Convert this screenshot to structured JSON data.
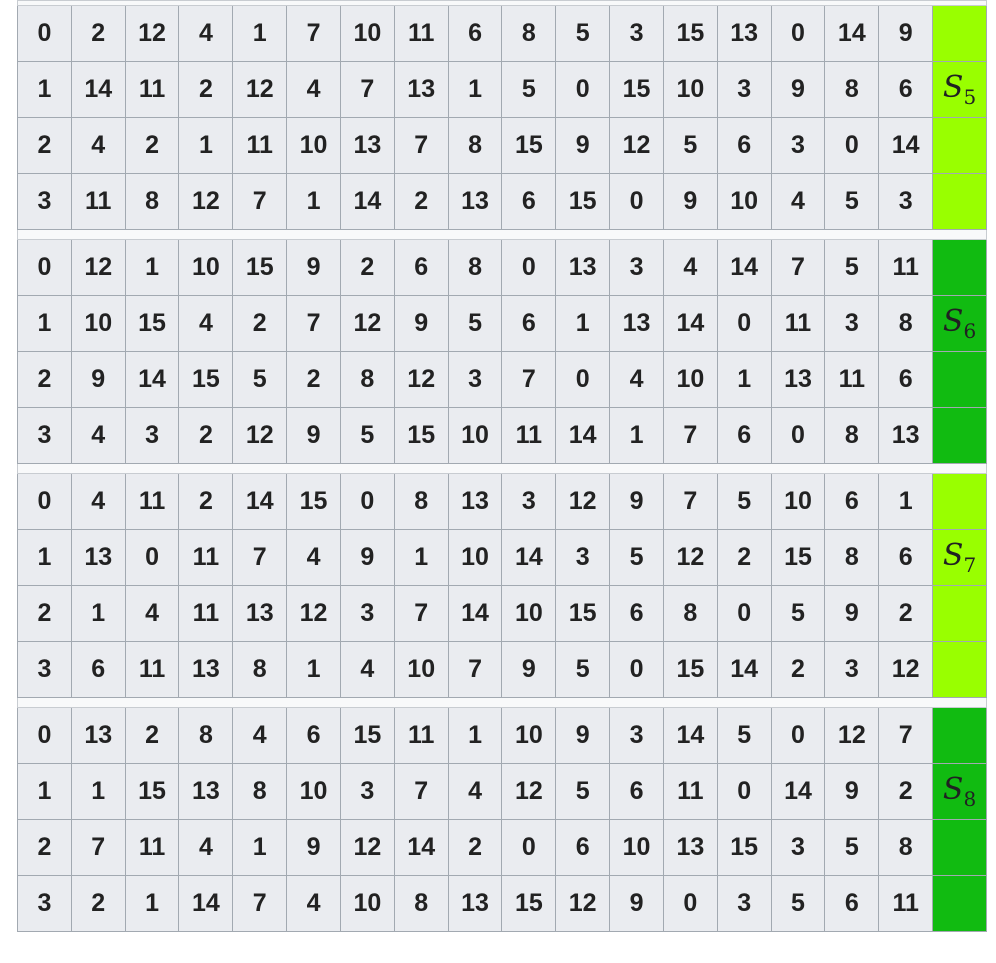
{
  "label_colors": [
    "#99ff00",
    "#11bb11",
    "#99ff00",
    "#11bb11"
  ],
  "sboxes": [
    {
      "name": "S",
      "index": "5",
      "rows": [
        {
          "row": "0",
          "values": [
            "2",
            "12",
            "4",
            "1",
            "7",
            "10",
            "11",
            "6",
            "8",
            "5",
            "3",
            "15",
            "13",
            "0",
            "14",
            "9"
          ]
        },
        {
          "row": "1",
          "values": [
            "14",
            "11",
            "2",
            "12",
            "4",
            "7",
            "13",
            "1",
            "5",
            "0",
            "15",
            "10",
            "3",
            "9",
            "8",
            "6"
          ]
        },
        {
          "row": "2",
          "values": [
            "4",
            "2",
            "1",
            "11",
            "10",
            "13",
            "7",
            "8",
            "15",
            "9",
            "12",
            "5",
            "6",
            "3",
            "0",
            "14"
          ]
        },
        {
          "row": "3",
          "values": [
            "11",
            "8",
            "12",
            "7",
            "1",
            "14",
            "2",
            "13",
            "6",
            "15",
            "0",
            "9",
            "10",
            "4",
            "5",
            "3"
          ]
        }
      ]
    },
    {
      "name": "S",
      "index": "6",
      "rows": [
        {
          "row": "0",
          "values": [
            "12",
            "1",
            "10",
            "15",
            "9",
            "2",
            "6",
            "8",
            "0",
            "13",
            "3",
            "4",
            "14",
            "7",
            "5",
            "11"
          ]
        },
        {
          "row": "1",
          "values": [
            "10",
            "15",
            "4",
            "2",
            "7",
            "12",
            "9",
            "5",
            "6",
            "1",
            "13",
            "14",
            "0",
            "11",
            "3",
            "8"
          ]
        },
        {
          "row": "2",
          "values": [
            "9",
            "14",
            "15",
            "5",
            "2",
            "8",
            "12",
            "3",
            "7",
            "0",
            "4",
            "10",
            "1",
            "13",
            "11",
            "6"
          ]
        },
        {
          "row": "3",
          "values": [
            "4",
            "3",
            "2",
            "12",
            "9",
            "5",
            "15",
            "10",
            "11",
            "14",
            "1",
            "7",
            "6",
            "0",
            "8",
            "13"
          ]
        }
      ]
    },
    {
      "name": "S",
      "index": "7",
      "rows": [
        {
          "row": "0",
          "values": [
            "4",
            "11",
            "2",
            "14",
            "15",
            "0",
            "8",
            "13",
            "3",
            "12",
            "9",
            "7",
            "5",
            "10",
            "6",
            "1"
          ]
        },
        {
          "row": "1",
          "values": [
            "13",
            "0",
            "11",
            "7",
            "4",
            "9",
            "1",
            "10",
            "14",
            "3",
            "5",
            "12",
            "2",
            "15",
            "8",
            "6"
          ]
        },
        {
          "row": "2",
          "values": [
            "1",
            "4",
            "11",
            "13",
            "12",
            "3",
            "7",
            "14",
            "10",
            "15",
            "6",
            "8",
            "0",
            "5",
            "9",
            "2"
          ]
        },
        {
          "row": "3",
          "values": [
            "6",
            "11",
            "13",
            "8",
            "1",
            "4",
            "10",
            "7",
            "9",
            "5",
            "0",
            "15",
            "14",
            "2",
            "3",
            "12"
          ]
        }
      ]
    },
    {
      "name": "S",
      "index": "8",
      "rows": [
        {
          "row": "0",
          "values": [
            "13",
            "2",
            "8",
            "4",
            "6",
            "15",
            "11",
            "1",
            "10",
            "9",
            "3",
            "14",
            "5",
            "0",
            "12",
            "7"
          ]
        },
        {
          "row": "1",
          "values": [
            "1",
            "15",
            "13",
            "8",
            "10",
            "3",
            "7",
            "4",
            "12",
            "5",
            "6",
            "11",
            "0",
            "14",
            "9",
            "2"
          ]
        },
        {
          "row": "2",
          "values": [
            "7",
            "11",
            "4",
            "1",
            "9",
            "12",
            "14",
            "2",
            "0",
            "6",
            "10",
            "13",
            "15",
            "3",
            "5",
            "8"
          ]
        },
        {
          "row": "3",
          "values": [
            "2",
            "1",
            "14",
            "7",
            "4",
            "10",
            "8",
            "13",
            "15",
            "12",
            "9",
            "0",
            "3",
            "5",
            "6",
            "11"
          ]
        }
      ]
    }
  ]
}
